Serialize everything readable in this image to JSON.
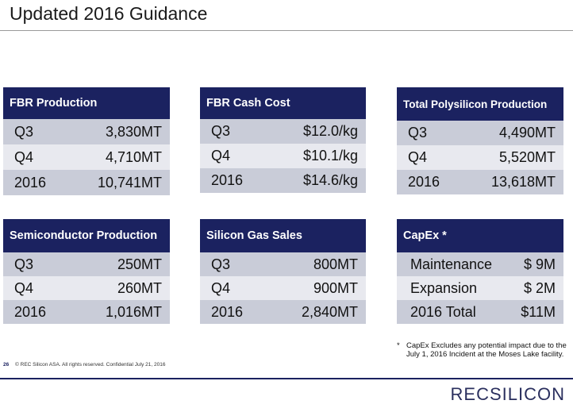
{
  "title": "Updated 2016 Guidance",
  "cards": [
    {
      "header": "FBR Production",
      "rows": [
        {
          "label": "Q3",
          "value": "3,830MT"
        },
        {
          "label": "Q4",
          "value": "4,710MT"
        },
        {
          "label": "2016",
          "value": "10,741MT"
        }
      ]
    },
    {
      "header": "FBR Cash Cost",
      "rows": [
        {
          "label": "Q3",
          "value": "$12.0/kg"
        },
        {
          "label": "Q4",
          "value": "$10.1/kg"
        },
        {
          "label": "2016",
          "value": "$14.6/kg"
        }
      ]
    },
    {
      "header": "Total Polysilicon Production",
      "rows": [
        {
          "label": "Q3",
          "value": "4,490MT"
        },
        {
          "label": "Q4",
          "value": "5,520MT"
        },
        {
          "label": "2016",
          "value": "13,618MT"
        }
      ]
    },
    {
      "header": "Semiconductor Production",
      "rows": [
        {
          "label": "Q3",
          "value": "250MT"
        },
        {
          "label": "Q4",
          "value": "260MT"
        },
        {
          "label": "2016",
          "value": "1,016MT"
        }
      ]
    },
    {
      "header": "Silicon Gas Sales",
      "rows": [
        {
          "label": "Q3",
          "value": "800MT"
        },
        {
          "label": "Q4",
          "value": "900MT"
        },
        {
          "label": "2016",
          "value": "2,840MT"
        }
      ]
    },
    {
      "header": "CapEx *",
      "rows": [
        {
          "label": "Maintenance",
          "value": "$ 9M"
        },
        {
          "label": "Expansion",
          "value": "$ 2M"
        },
        {
          "label": "2016 Total",
          "value": "$11M"
        }
      ]
    }
  ],
  "footnote": {
    "marker": "*",
    "text": "CapEx Excludes any potential impact due to the July 1, 2016 Incident at the Moses Lake facility."
  },
  "footer": {
    "page_number": "26",
    "copyright": "© REC Silicon ASA. All rights reserved. Confidential  July 21, 2016"
  },
  "logo_text": "RECSILICON",
  "colors": {
    "header": "#1b2260",
    "row_dark": "#c9ccd8",
    "row_light": "#e8e9ef"
  }
}
